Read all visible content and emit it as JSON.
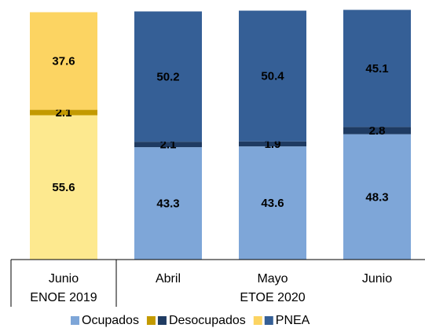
{
  "chart_data": {
    "type": "stacked_bar",
    "categories": [
      "Junio",
      "Abril",
      "Mayo",
      "Junio"
    ],
    "group_labels": [
      "ENOE 2019",
      "ETOE 2020"
    ],
    "series": [
      {
        "name": "Ocupados",
        "colors": [
          "#fde98f",
          "#7ea6d8",
          "#7ea6d8",
          "#7ea6d8"
        ],
        "label_colors": [
          "#000000",
          "#000000",
          "#000000",
          "#000000"
        ],
        "values": [
          55.6,
          43.3,
          43.6,
          48.3
        ]
      },
      {
        "name": "Desocupados",
        "colors": [
          "#c39a00",
          "#1f3b62",
          "#1f3b62",
          "#1f3b62"
        ],
        "label_colors": [
          "#000000",
          "#ffffff",
          "#ffffff",
          "#ffffff"
        ],
        "values": [
          2.1,
          2.1,
          1.9,
          2.8
        ]
      },
      {
        "name": "PNEA",
        "colors": [
          "#fcd462",
          "#355f96",
          "#355f96",
          "#355f96"
        ],
        "label_colors": [
          "#000000",
          "#ffffff",
          "#ffffff",
          "#ffffff"
        ],
        "values": [
          37.6,
          50.2,
          50.4,
          45.1
        ]
      }
    ],
    "ylim": [
      0,
      100
    ]
  }
}
